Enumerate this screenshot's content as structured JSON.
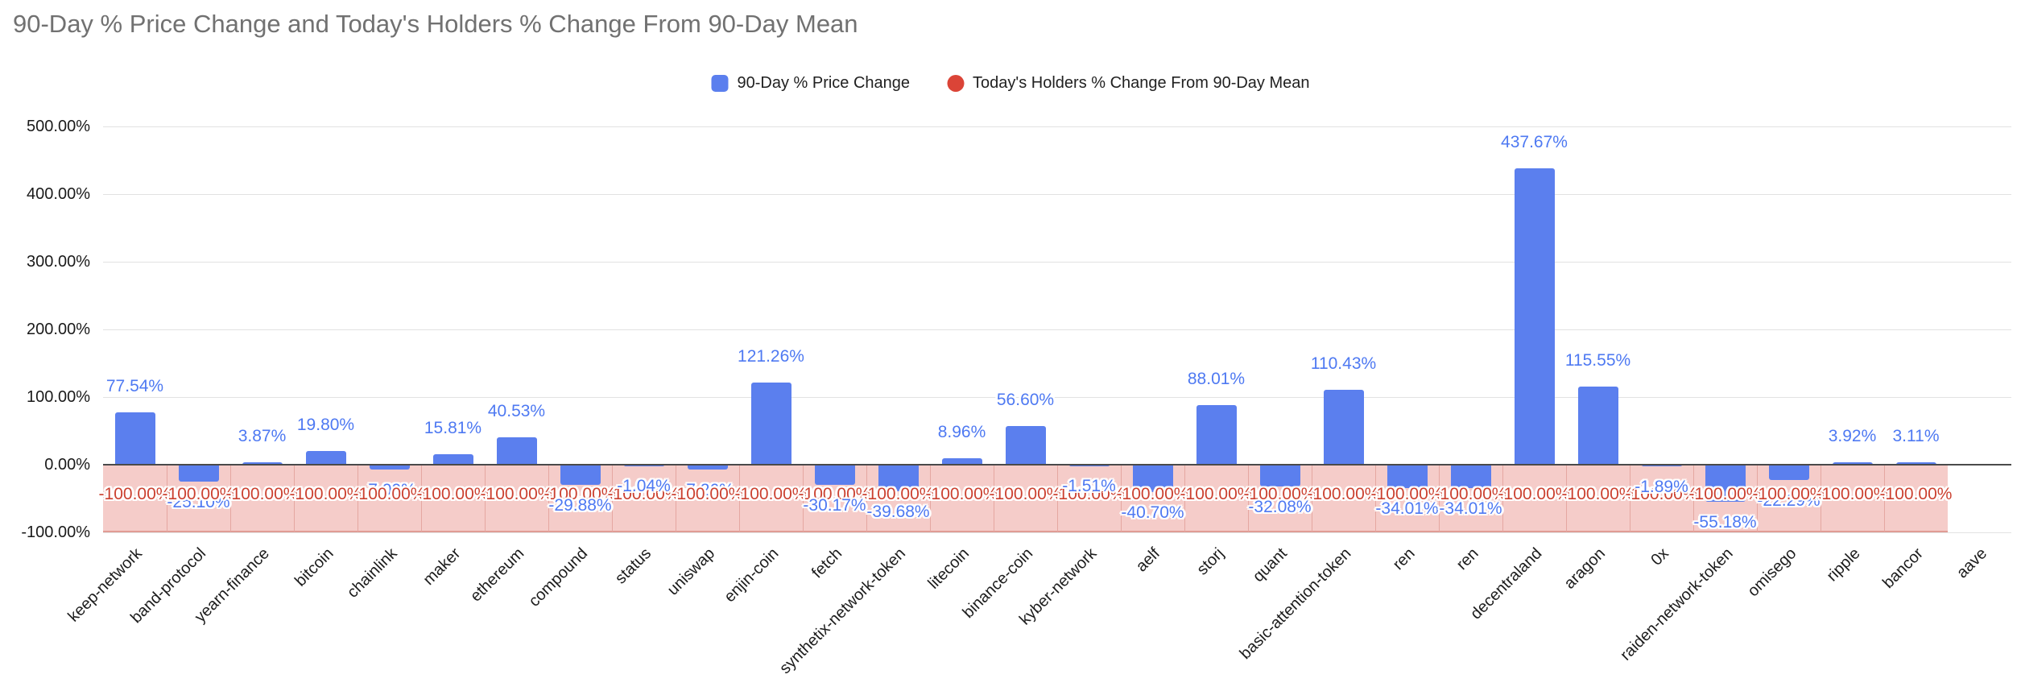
{
  "title": "90-Day % Price Change and Today's Holders % Change From 90-Day Mean",
  "legend": [
    {
      "label": "90-Day % Price Change",
      "shape": "square",
      "color": "#5B7FEE"
    },
    {
      "label": "Today's Holders % Change From 90-Day Mean",
      "shape": "circle",
      "color": "#DB4437"
    }
  ],
  "chart_data": {
    "type": "bar",
    "title": "90-Day % Price Change and Today's Holders % Change From 90-Day Mean",
    "categories": [
      "keep-network",
      "band-protocol",
      "yearn-finance",
      "bitcoin",
      "chainlink",
      "maker",
      "ethereum",
      "compound",
      "status",
      "uniswap",
      "enjin-coin",
      "fetch",
      "synthetix-network-token",
      "litecoin",
      "binance-coin",
      "kyber-network",
      "aelf",
      "storj",
      "quant",
      "basic-attention-token",
      "ren",
      "ren",
      "decentraland",
      "aragon",
      "0x",
      "raiden-network-token",
      "omisego",
      "ripple",
      "bancor",
      "aave"
    ],
    "series": [
      {
        "name": "90-Day % Price Change",
        "type": "column",
        "color": "#5B7FEE",
        "label_color": "#4E79F2",
        "values": [
          77.54,
          -25.1,
          3.87,
          19.8,
          -7.0,
          15.81,
          40.53,
          -29.88,
          -1.04,
          -7.26,
          121.26,
          -30.17,
          -39.68,
          8.96,
          56.6,
          -1.51,
          -40.7,
          88.01,
          -32.08,
          110.43,
          -34.01,
          -34.01,
          437.67,
          115.55,
          -1.89,
          -55.18,
          -22.29,
          3.92,
          3.11,
          null
        ]
      },
      {
        "name": "Today's Holders % Change From 90-Day Mean",
        "type": "area",
        "color": "#DB4437",
        "fill_opacity": 0.27,
        "label_color": "#CB4130",
        "values": [
          -100,
          -100,
          -100,
          -100,
          -100,
          -100,
          -100,
          -100,
          -100,
          -100,
          -100,
          -100,
          -100,
          -100,
          -100,
          -100,
          -100,
          -100,
          -100,
          -100,
          -100,
          -100,
          -100,
          -100,
          -100,
          -100,
          -100,
          -100,
          -100,
          null
        ]
      }
    ],
    "ylim": [
      -100,
      500
    ],
    "y_ticks": [
      {
        "value": 500,
        "label": "500.00%"
      },
      {
        "value": 400,
        "label": "400.00%"
      },
      {
        "value": 300,
        "label": "300.00%"
      },
      {
        "value": 200,
        "label": "200.00%"
      },
      {
        "value": 100,
        "label": "100.00%"
      },
      {
        "value": 0,
        "label": "0.00%"
      },
      {
        "value": -100,
        "label": "-100.00%"
      }
    ],
    "grid": true,
    "legend_position": "top",
    "occluded_blue_label_indices": [
      1,
      4,
      9,
      26
    ]
  }
}
